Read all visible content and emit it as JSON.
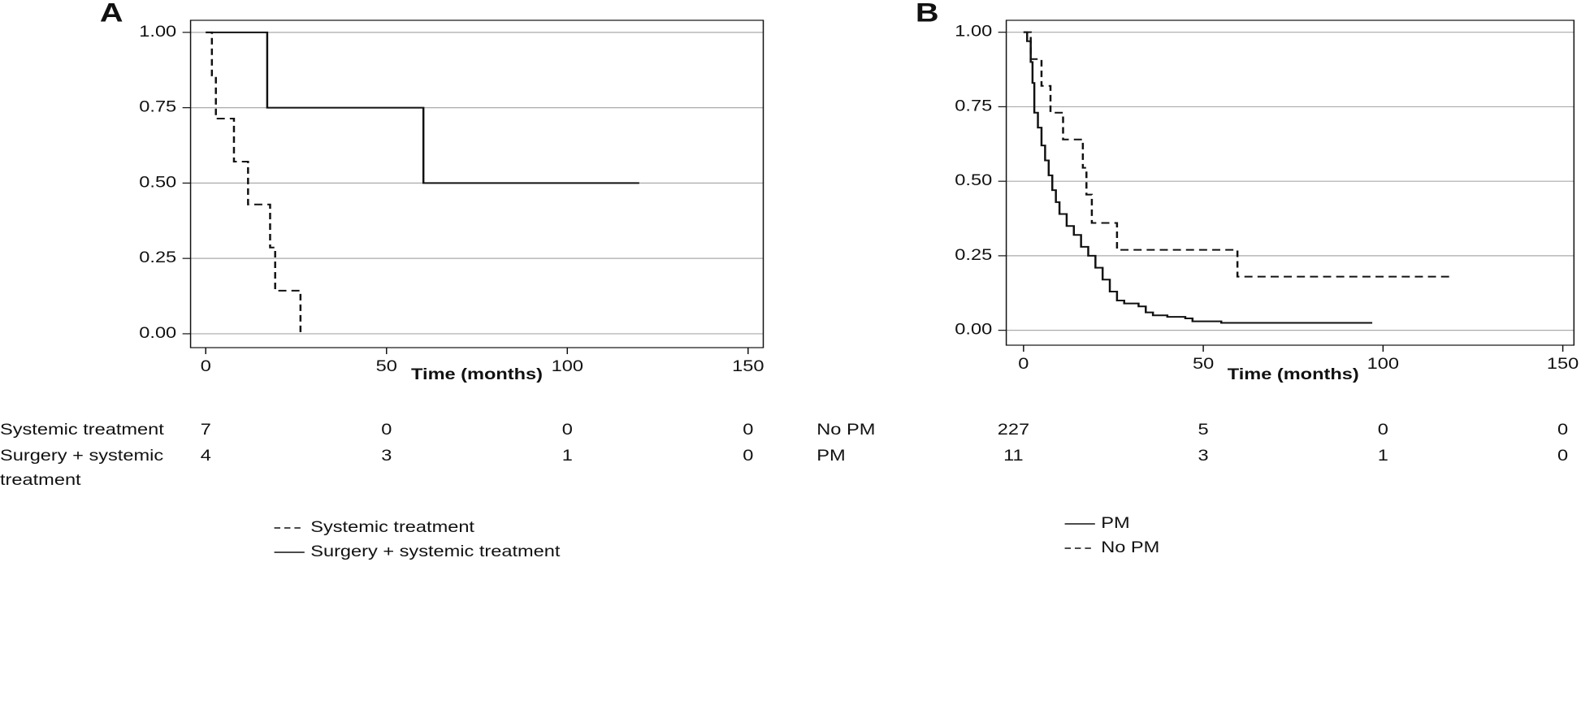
{
  "chart_data": [
    {
      "type": "line",
      "step": "post",
      "panel": "A",
      "xlabel": "Time (months)",
      "xlim": [
        -4.2,
        154.2
      ],
      "ylim": [
        -0.046,
        1.04
      ],
      "xticks": [
        0,
        50,
        100,
        150
      ],
      "yticks": [
        {
          "value": 0,
          "label": "0.00"
        },
        {
          "value": 0.25,
          "label": "0.25"
        },
        {
          "value": 0.5,
          "label": "0.50"
        },
        {
          "value": 0.75,
          "label": "0.75"
        },
        {
          "value": 1,
          "label": "1.00"
        }
      ],
      "grid": true,
      "series": [
        {
          "name": "Systemic treatment",
          "color": "#111111",
          "dashed": true,
          "x": [
            0,
            1.7,
            2.8,
            7.8,
            11.7,
            17.8,
            19.2,
            26.2
          ],
          "values": [
            1,
            0.857,
            0.714,
            0.571,
            0.429,
            0.286,
            0.143,
            0
          ]
        },
        {
          "name": "Surgery + systemic treatment",
          "color": "#111111",
          "dashed": false,
          "x": [
            0,
            17,
            60.2,
            119.9
          ],
          "values": [
            1,
            0.75,
            0.5,
            0.5
          ]
        }
      ],
      "risk_table": [
        {
          "label": "Systemic treatment",
          "counts": [
            7,
            0,
            0,
            0
          ]
        },
        {
          "label": "Surgery + systemic treatment",
          "counts": [
            4,
            3,
            1,
            0
          ]
        }
      ]
    },
    {
      "type": "line",
      "step": "post",
      "panel": "B",
      "xlabel": "Time (months)",
      "xlim": [
        -4.8,
        153.1
      ],
      "ylim": [
        -0.05,
        1.04
      ],
      "xticks": [
        0,
        50,
        100,
        150
      ],
      "yticks": [
        {
          "value": 0,
          "label": "0.00"
        },
        {
          "value": 0.25,
          "label": "0.25"
        },
        {
          "value": 0.5,
          "label": "0.50"
        },
        {
          "value": 0.75,
          "label": "0.75"
        },
        {
          "value": 1,
          "label": "1.00"
        }
      ],
      "grid": true,
      "series": [
        {
          "name": "PM",
          "color": "#111111",
          "dashed": false,
          "x": [
            0,
            1,
            2,
            2.5,
            3,
            4,
            5,
            6,
            7,
            8,
            9,
            10,
            12,
            14,
            16,
            18,
            20,
            22,
            24,
            26,
            28,
            32,
            34,
            36,
            40,
            45,
            47,
            55,
            97
          ],
          "values": [
            1,
            0.97,
            0.9,
            0.83,
            0.73,
            0.68,
            0.62,
            0.57,
            0.52,
            0.47,
            0.43,
            0.39,
            0.35,
            0.32,
            0.28,
            0.25,
            0.21,
            0.17,
            0.13,
            0.1,
            0.09,
            0.08,
            0.06,
            0.05,
            0.045,
            0.04,
            0.03,
            0.025,
            0.025
          ]
        },
        {
          "name": "No PM",
          "color": "#111111",
          "dashed": true,
          "x": [
            0,
            2,
            5,
            7.5,
            11,
            16.5,
            17.5,
            19,
            26,
            59.5,
            119.5
          ],
          "values": [
            1,
            0.91,
            0.82,
            0.73,
            0.64,
            0.545,
            0.455,
            0.36,
            0.27,
            0.18,
            0.18
          ]
        }
      ],
      "risk_table": [
        {
          "label": "No PM",
          "counts": [
            227,
            5,
            0,
            0
          ]
        },
        {
          "label": "PM",
          "counts": [
            11,
            3,
            1,
            0
          ]
        }
      ]
    }
  ]
}
